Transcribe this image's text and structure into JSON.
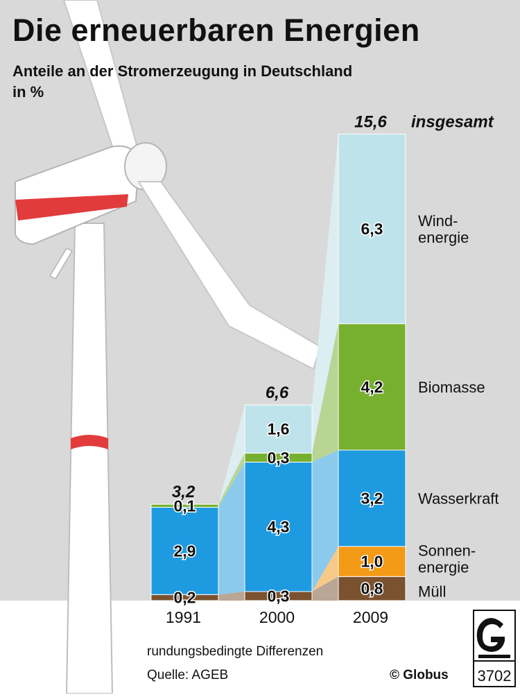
{
  "header": {
    "title": "Die erneuerbaren Energien",
    "subtitle_line1": "Anteile an der Stromerzeugung in Deutschland",
    "subtitle_line2": "in %"
  },
  "colors": {
    "background_gray": "#d9d9d9",
    "wind": "#bfe3ea",
    "biomass": "#77b02e",
    "water": "#1e9be0",
    "solar": "#f39a17",
    "waste": "#7b5230",
    "accent_red": "#e23b3b"
  },
  "chart_data": {
    "type": "bar",
    "stacked": true,
    "categories": [
      "1991",
      "2000",
      "2009"
    ],
    "totals": [
      "3,2",
      "6,6",
      "15,6"
    ],
    "total_suffix": "insgesamt",
    "series": [
      {
        "name": "Müll",
        "values": [
          0.2,
          0.3,
          0.8
        ],
        "labels": [
          "0,2",
          "0,3",
          "0,8"
        ],
        "color": "#7b5230"
      },
      {
        "name": "Sonnenenergie",
        "legend_lines": [
          "Sonnen-",
          "energie"
        ],
        "values": [
          0,
          0,
          1.0
        ],
        "labels": [
          "",
          "",
          "1,0"
        ],
        "color": "#f39a17"
      },
      {
        "name": "Wasserkraft",
        "values": [
          2.9,
          4.3,
          3.2
        ],
        "labels": [
          "2,9",
          "4,3",
          "3,2"
        ],
        "color": "#1e9be0"
      },
      {
        "name": "Biomasse",
        "values": [
          0.1,
          0.3,
          4.2
        ],
        "labels": [
          "0,1",
          "0,3",
          "4,2"
        ],
        "color": "#77b02e"
      },
      {
        "name": "Windenergie",
        "legend_lines": [
          "Wind-",
          "energie"
        ],
        "values": [
          0,
          1.6,
          6.3
        ],
        "labels": [
          "",
          "1,6",
          "6,3"
        ],
        "color": "#bfe3ea"
      }
    ]
  },
  "footer": {
    "note": "rundungsbedingte Differenzen",
    "source": "Quelle: AGEB",
    "credit": "© Globus",
    "logo_number": "3702"
  }
}
